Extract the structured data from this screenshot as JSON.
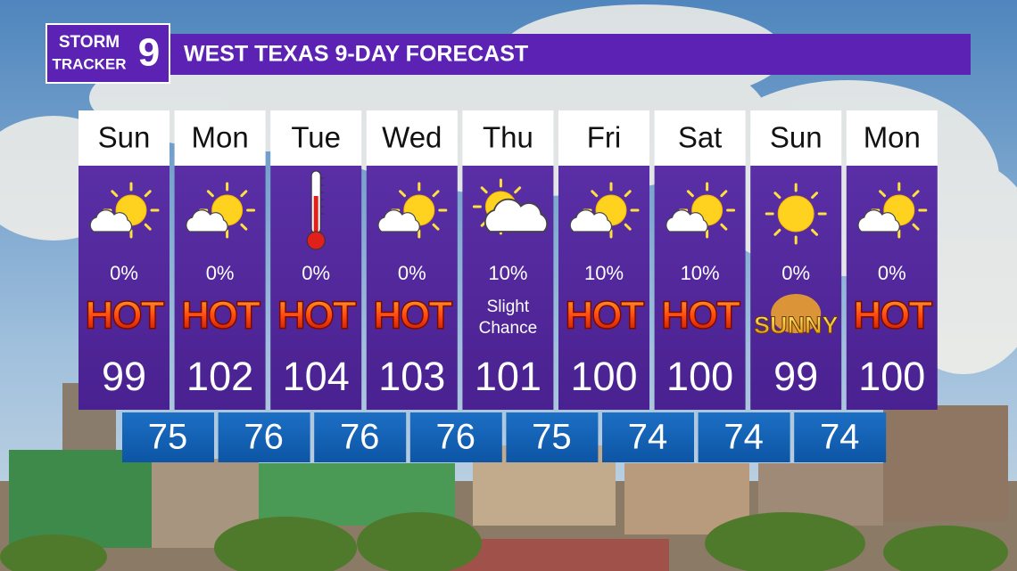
{
  "header": {
    "logo": {
      "line1": "STORM",
      "line2": "TRACKER",
      "number": "9"
    },
    "title": "WEST TEXAS 9-DAY FORECAST"
  },
  "days": [
    {
      "day": "Sun",
      "icon": "sun-cloud",
      "precip": "0%",
      "condition": [
        "HOT"
      ],
      "condition_style": "hot",
      "high": 99
    },
    {
      "day": "Mon",
      "icon": "sun-cloud",
      "precip": "0%",
      "condition": [
        "HOT"
      ],
      "condition_style": "hot",
      "high": 102
    },
    {
      "day": "Tue",
      "icon": "thermometer",
      "precip": "0%",
      "condition": [
        "HOT"
      ],
      "condition_style": "hot",
      "high": 104
    },
    {
      "day": "Wed",
      "icon": "sun-cloud",
      "precip": "0%",
      "condition": [
        "HOT"
      ],
      "condition_style": "hot",
      "high": 103
    },
    {
      "day": "Thu",
      "icon": "cloud-sun",
      "precip": "10%",
      "condition": [
        "Slight",
        "Chance"
      ],
      "condition_style": "plain",
      "high": 101
    },
    {
      "day": "Fri",
      "icon": "sun-cloud",
      "precip": "10%",
      "condition": [
        "HOT"
      ],
      "condition_style": "hot",
      "high": 100
    },
    {
      "day": "Sat",
      "icon": "sun-cloud",
      "precip": "10%",
      "condition": [
        "HOT"
      ],
      "condition_style": "hot",
      "high": 100
    },
    {
      "day": "Sun",
      "icon": "sun",
      "precip": "0%",
      "condition": [
        "SUNNY"
      ],
      "condition_style": "sunny",
      "high": 99
    },
    {
      "day": "Mon",
      "icon": "sun-cloud",
      "precip": "0%",
      "condition": [
        "HOT"
      ],
      "condition_style": "hot",
      "high": 100
    }
  ],
  "lows": [
    75,
    76,
    76,
    76,
    75,
    74,
    74,
    74
  ]
}
